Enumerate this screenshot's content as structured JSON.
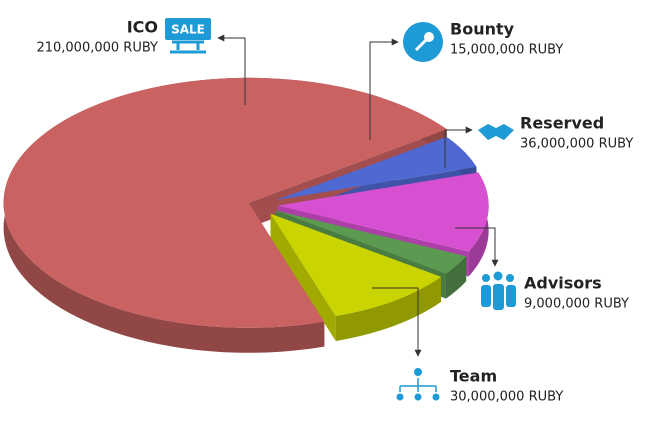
{
  "chart_data": {
    "type": "pie",
    "categories": [
      "ICO",
      "Bounty",
      "Reserved",
      "Advisors",
      "Team"
    ],
    "values": [
      210000000,
      15000000,
      36000000,
      9000000,
      30000000
    ],
    "value_labels": [
      "210,000,000 RUBY",
      "15,000,000 RUBY",
      "36,000,000 RUBY",
      "9,000,000 RUBY",
      "30,000,000 RUBY"
    ],
    "colors": [
      "#cb6262",
      "#4f68d2",
      "#d850d2",
      "#5c9a52",
      "#c9d400"
    ],
    "ico_badge": "SALE"
  }
}
